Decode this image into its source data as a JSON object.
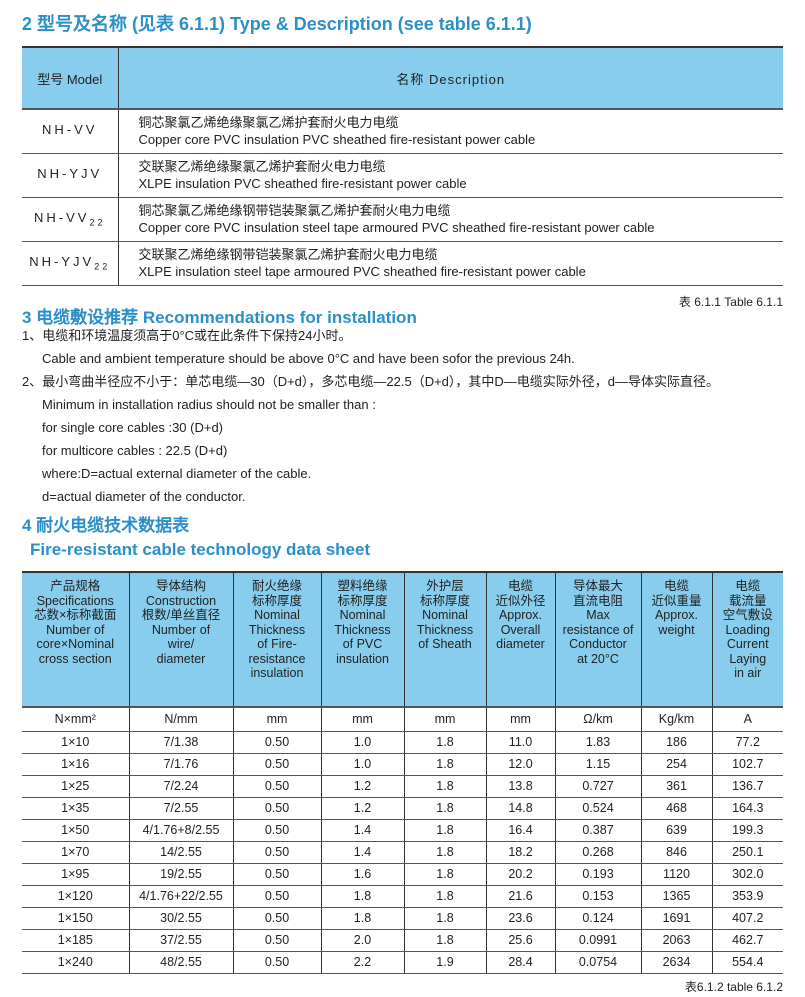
{
  "section2": {
    "title": "2 型号及名称 (见表 6.1.1) Type & Description (see table 6.1.1)",
    "headers": [
      "型号 Model",
      "名称 Description"
    ],
    "rows": [
      {
        "model": "NH-VV",
        "sub": "",
        "cn": "铜芯聚氯乙烯绝缘聚氯乙烯护套耐火电力电缆",
        "en": "Copper core PVC insulation PVC sheathed fire-resistant power cable"
      },
      {
        "model": "NH-YJV",
        "sub": "",
        "cn": "交联聚乙烯绝缘聚氯乙烯护套耐火电力电缆",
        "en": "XLPE insulation PVC sheathed fire-resistant power cable"
      },
      {
        "model": "NH-VV",
        "sub": "22",
        "cn": "铜芯聚氯乙烯绝缘钢带铠装聚氯乙烯护套耐火电力电缆",
        "en": "Copper core PVC insulation steel tape armoured PVC sheathed fire-resistant power cable"
      },
      {
        "model": "NH-YJV",
        "sub": "22",
        "cn": "交联聚乙烯绝缘钢带铠装聚氯乙烯护套耐火电力电缆",
        "en": "XLPE insulation steel tape armoured PVC sheathed fire-resistant power cable"
      }
    ],
    "caption": "表 6.1.1 Table 6.1.1"
  },
  "section3": {
    "title": "3 电缆敷设推荐 Recommendations for installation",
    "lines": [
      "1、电缆和环境温度须高于0°C或在此条件下保持24小时。",
      "Cable and ambient temperature should be above 0°C and have been sofor the previous 24h.",
      "2、最小弯曲半径应不小于：单芯电缆—30（D+d），多芯电缆—22.5（D+d），其中D—电缆实际外径，d—导体实际直径。",
      "Minimum in installation radius should not be smaller than :",
      "for single core cables :30 (D+d)",
      "for multicore cables : 22.5 (D+d)",
      "where:D=actual external diameter of the cable.",
      "d=actual diameter of the conductor."
    ]
  },
  "section4": {
    "title_cn": "4 耐火电缆技术数据表",
    "title_en": "Fire-resistant cable technology data sheet",
    "headers": [
      "产品规格\nSpecifications\n芯数×标称截面\nNumber of\ncore×Nominal\ncross section",
      "导体结构\nConstruction\n根数/单丝直径\nNumber of\nwire/\ndiameter",
      "耐火绝缘\n标称厚度\nNominal\nThickness\nof Fire-\nresistance\ninsulation",
      "塑料绝缘\n标称厚度\nNominal\nThickness\nof PVC\ninsulation",
      "外护层\n标称厚度\nNominal\nThickness\nof Sheath",
      "电缆\n近似外径\nApprox.\nOverall\ndiameter",
      "导体最大\n直流电阻\nMax\nresistance of\nConductor\nat 20°C",
      "电缆\n近似重量\nApprox.\nweight",
      "电缆\n载流量\n空气敷设\nLoading\nCurrent\nLaying\nin air"
    ],
    "units": [
      "N×mm²",
      "N/mm",
      "mm",
      "mm",
      "mm",
      "mm",
      "Ω/km",
      "Kg/km",
      "A"
    ],
    "rows": [
      [
        "1×10",
        "7/1.38",
        "0.50",
        "1.0",
        "1.8",
        "11.0",
        "1.83",
        "186",
        "77.2"
      ],
      [
        "1×16",
        "7/1.76",
        "0.50",
        "1.0",
        "1.8",
        "12.0",
        "1.15",
        "254",
        "102.7"
      ],
      [
        "1×25",
        "7/2.24",
        "0.50",
        "1.2",
        "1.8",
        "13.8",
        "0.727",
        "361",
        "136.7"
      ],
      [
        "1×35",
        "7/2.55",
        "0.50",
        "1.2",
        "1.8",
        "14.8",
        "0.524",
        "468",
        "164.3"
      ],
      [
        "1×50",
        "4/1.76+8/2.55",
        "0.50",
        "1.4",
        "1.8",
        "16.4",
        "0.387",
        "639",
        "199.3"
      ],
      [
        "1×70",
        "14/2.55",
        "0.50",
        "1.4",
        "1.8",
        "18.2",
        "0.268",
        "846",
        "250.1"
      ],
      [
        "1×95",
        "19/2.55",
        "0.50",
        "1.6",
        "1.8",
        "20.2",
        "0.193",
        "1120",
        "302.0"
      ],
      [
        "1×120",
        "4/1.76+22/2.55",
        "0.50",
        "1.8",
        "1.8",
        "21.6",
        "0.153",
        "1365",
        "353.9"
      ],
      [
        "1×150",
        "30/2.55",
        "0.50",
        "1.8",
        "1.8",
        "23.6",
        "0.124",
        "1691",
        "407.2"
      ],
      [
        "1×185",
        "37/2.55",
        "0.50",
        "2.0",
        "1.8",
        "25.6",
        "0.0991",
        "2063",
        "462.7"
      ],
      [
        "1×240",
        "48/2.55",
        "0.50",
        "2.2",
        "1.9",
        "28.4",
        "0.0754",
        "2634",
        "554.4"
      ]
    ],
    "caption": "表6.1.2 table 6.1.2"
  },
  "colors": {
    "accent": "#2b8fc9",
    "header_bg": "#88cdee"
  }
}
